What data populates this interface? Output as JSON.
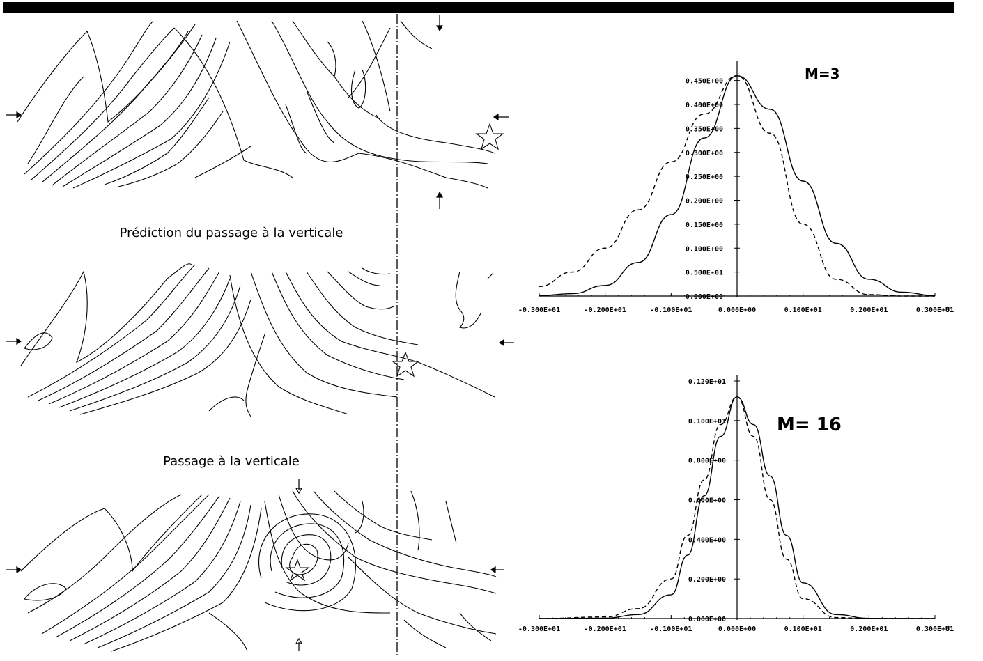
{
  "panel_captions": {
    "prediction": "Prédiction du passage à la verticale",
    "passage": "Passage à la verticale"
  },
  "chart_data": [
    {
      "type": "line",
      "annotation": "M=3",
      "x_tick_labels": [
        "-0.300E+01",
        "-0.200E+01",
        "-0.100E+01",
        "0.000E+00",
        "0.100E+01",
        "0.200E+01",
        "0.300E+01"
      ],
      "x_unit_label": "U",
      "y_tick_labels": [
        "0.000E+00",
        "0.500E-01",
        "0.100E+00",
        "0.150E+00",
        "0.200E+00",
        "0.250E+00",
        "0.300E+00",
        "0.350E+00",
        "0.400E+00",
        "0.450E+00"
      ],
      "xlim": [
        -3,
        3
      ],
      "ylim": [
        0,
        0.48
      ],
      "series": [
        {
          "style": "solid",
          "x": [
            -3,
            -2.5,
            -2,
            -1.5,
            -1,
            -0.5,
            0,
            0.5,
            1,
            1.5,
            2,
            2.5,
            3
          ],
          "y": [
            0.001,
            0.005,
            0.022,
            0.07,
            0.17,
            0.33,
            0.46,
            0.39,
            0.24,
            0.11,
            0.035,
            0.008,
            0.001
          ]
        },
        {
          "style": "dashed",
          "x": [
            -3,
            -2.5,
            -2,
            -1.5,
            -1,
            -0.5,
            0,
            0.5,
            1,
            1.5,
            2,
            2.5,
            3
          ],
          "y": [
            0.02,
            0.05,
            0.1,
            0.18,
            0.28,
            0.38,
            0.46,
            0.34,
            0.15,
            0.035,
            0.003,
            0,
            0
          ]
        }
      ]
    },
    {
      "type": "line",
      "annotation": "M= 16",
      "x_tick_labels": [
        "-0.300E+01",
        "-0.200E+01",
        "-0.100E+01",
        "0.000E+00",
        "0.100E+01",
        "0.200E+01",
        "0.300E+01"
      ],
      "x_unit_label": "U",
      "y_tick_labels": [
        "0.000E+00",
        "0.200E+00",
        "0.400E+00",
        "0.600E+00",
        "0.800E+00",
        "0.100E+01",
        "0.120E+01"
      ],
      "xlim": [
        -3,
        3
      ],
      "ylim": [
        0,
        1.2
      ],
      "series": [
        {
          "style": "solid",
          "x": [
            -3,
            -2,
            -1.5,
            -1,
            -0.75,
            -0.5,
            -0.25,
            0,
            0.25,
            0.5,
            0.75,
            1,
            1.5,
            2,
            3
          ],
          "y": [
            0,
            0.002,
            0.02,
            0.12,
            0.32,
            0.62,
            0.92,
            1.12,
            0.98,
            0.72,
            0.42,
            0.18,
            0.02,
            0.001,
            0
          ]
        },
        {
          "style": "dashed",
          "x": [
            -3,
            -2,
            -1.5,
            -1,
            -0.75,
            -0.5,
            -0.25,
            0,
            0.25,
            0.5,
            0.75,
            1,
            1.5,
            2,
            3
          ],
          "y": [
            0,
            0.008,
            0.05,
            0.2,
            0.42,
            0.7,
            0.98,
            1.12,
            0.92,
            0.6,
            0.3,
            0.1,
            0.005,
            0,
            0
          ]
        }
      ]
    }
  ]
}
